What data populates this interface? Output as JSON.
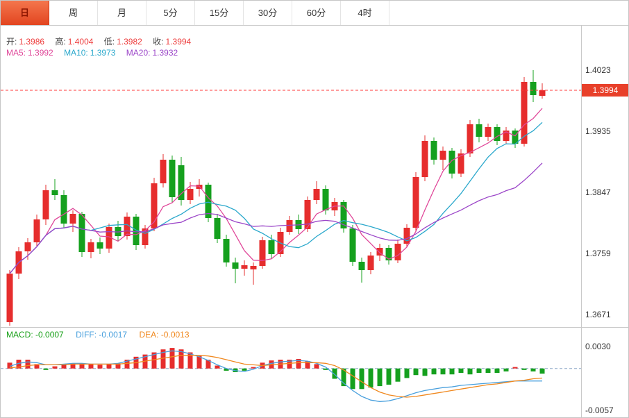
{
  "toolbar": {
    "tabs": [
      {
        "label": "日",
        "active": true
      },
      {
        "label": "周",
        "active": false
      },
      {
        "label": "月",
        "active": false
      },
      {
        "label": "5分",
        "active": false
      },
      {
        "label": "15分",
        "active": false
      },
      {
        "label": "30分",
        "active": false
      },
      {
        "label": "60分",
        "active": false
      },
      {
        "label": "4时",
        "active": false
      }
    ]
  },
  "legend": {
    "open_label": "开:",
    "open_value": "1.3986",
    "high_label": "高:",
    "high_value": "1.4004",
    "low_label": "低:",
    "low_value": "1.3982",
    "close_label": "收:",
    "close_value": "1.3994",
    "ma5_label": "MA5:",
    "ma5_value": "1.3992",
    "ma10_label": "MA10:",
    "ma10_value": "1.3973",
    "ma20_label": "MA20:",
    "ma20_value": "1.3932"
  },
  "price_axis": {
    "tick_labels": [
      "1.4023",
      "1.3935",
      "1.3847",
      "1.3759",
      "1.3671"
    ],
    "current_label": "1.3994"
  },
  "macd_legend": {
    "macd_label": "MACD:",
    "macd_value": "-0.0007",
    "diff_label": "DIFF:",
    "diff_value": "-0.0017",
    "dea_label": "DEA:",
    "dea_value": "-0.0013"
  },
  "macd_axis": {
    "top_label": "0.0030",
    "bottom_label": "-0.0057"
  },
  "colors": {
    "up": "#e62d2d",
    "down": "#15a01e",
    "ma5": "#e0489a",
    "ma10": "#2aa8cc",
    "ma20": "#9b45c8",
    "diff": "#49a0dd",
    "dea": "#f0881e",
    "current_line": "#ff3b3b",
    "zero_line": "#8ea8c8",
    "active_tab": "#e24520"
  },
  "chart_data": {
    "type": "candlestick",
    "interval": "日",
    "title": "",
    "price_axis_ticks": [
      1.4023,
      1.3935,
      1.3847,
      1.3759,
      1.3671
    ],
    "current_price": 1.3994,
    "last_bar": {
      "open": 1.3986,
      "high": 1.4004,
      "low": 1.3982,
      "close": 1.3994
    },
    "ma_overlays": [
      {
        "name": "MA5",
        "period": 5,
        "last_value": 1.3992
      },
      {
        "name": "MA10",
        "period": 10,
        "last_value": 1.3973
      },
      {
        "name": "MA20",
        "period": 20,
        "last_value": 1.3932
      }
    ],
    "candles": [
      [
        1.366,
        1.3735,
        1.3655,
        1.373
      ],
      [
        1.373,
        1.3768,
        1.3722,
        1.3762
      ],
      [
        1.3762,
        1.3781,
        1.375,
        1.3775
      ],
      [
        1.3775,
        1.3815,
        1.377,
        1.3808
      ],
      [
        1.3808,
        1.3858,
        1.38,
        1.385
      ],
      [
        1.385,
        1.3866,
        1.3836,
        1.3843
      ],
      [
        1.3843,
        1.385,
        1.3795,
        1.3802
      ],
      [
        1.3802,
        1.3821,
        1.379,
        1.3816
      ],
      [
        1.3816,
        1.3819,
        1.3754,
        1.3761
      ],
      [
        1.3761,
        1.378,
        1.3752,
        1.3775
      ],
      [
        1.3775,
        1.3782,
        1.3758,
        1.3766
      ],
      [
        1.3766,
        1.3802,
        1.376,
        1.3797
      ],
      [
        1.3797,
        1.3806,
        1.3777,
        1.3784
      ],
      [
        1.3784,
        1.3818,
        1.3779,
        1.3812
      ],
      [
        1.3812,
        1.3816,
        1.3764,
        1.3771
      ],
      [
        1.3771,
        1.38,
        1.3766,
        1.3795
      ],
      [
        1.3795,
        1.3868,
        1.3791,
        1.386
      ],
      [
        1.386,
        1.3902,
        1.3854,
        1.3894
      ],
      [
        1.3894,
        1.39,
        1.3832,
        1.384
      ],
      [
        1.3886,
        1.3898,
        1.3828,
        1.3836
      ],
      [
        1.3836,
        1.3862,
        1.383,
        1.3852
      ],
      [
        1.3852,
        1.3866,
        1.3841,
        1.3858
      ],
      [
        1.3858,
        1.3861,
        1.3804,
        1.381
      ],
      [
        1.381,
        1.3816,
        1.3774,
        1.378
      ],
      [
        1.378,
        1.3786,
        1.374,
        1.3746
      ],
      [
        1.3746,
        1.3753,
        1.3716,
        1.3737
      ],
      [
        1.3737,
        1.3749,
        1.3727,
        1.3742
      ],
      [
        1.3736,
        1.3746,
        1.3714,
        1.3741
      ],
      [
        1.3741,
        1.3783,
        1.3737,
        1.3778
      ],
      [
        1.3778,
        1.3786,
        1.3752,
        1.3758
      ],
      [
        1.3758,
        1.3796,
        1.3754,
        1.379
      ],
      [
        1.379,
        1.3813,
        1.3786,
        1.3807
      ],
      [
        1.3807,
        1.3815,
        1.3787,
        1.3794
      ],
      [
        1.3794,
        1.3841,
        1.379,
        1.3836
      ],
      [
        1.3836,
        1.3863,
        1.383,
        1.3852
      ],
      [
        1.3852,
        1.3857,
        1.3815,
        1.3821
      ],
      [
        1.3821,
        1.3839,
        1.3813,
        1.3833
      ],
      [
        1.3833,
        1.3836,
        1.3789,
        1.3795
      ],
      [
        1.3795,
        1.38,
        1.3741,
        1.3747
      ],
      [
        1.3747,
        1.3753,
        1.3717,
        1.3735
      ],
      [
        1.3735,
        1.3761,
        1.3729,
        1.3756
      ],
      [
        1.3756,
        1.3773,
        1.3748,
        1.3767
      ],
      [
        1.3767,
        1.3771,
        1.3743,
        1.3749
      ],
      [
        1.3749,
        1.3779,
        1.3745,
        1.3773
      ],
      [
        1.3773,
        1.3801,
        1.3768,
        1.3796
      ],
      [
        1.3796,
        1.3876,
        1.3791,
        1.3869
      ],
      [
        1.3869,
        1.3929,
        1.3863,
        1.3921
      ],
      [
        1.3921,
        1.3926,
        1.3887,
        1.3894
      ],
      [
        1.3894,
        1.3913,
        1.3879,
        1.3907
      ],
      [
        1.3907,
        1.3911,
        1.3867,
        1.3874
      ],
      [
        1.3874,
        1.3909,
        1.3869,
        1.3903
      ],
      [
        1.3903,
        1.3951,
        1.3898,
        1.3945
      ],
      [
        1.3945,
        1.3953,
        1.3919,
        1.3927
      ],
      [
        1.3927,
        1.3946,
        1.3921,
        1.3941
      ],
      [
        1.3941,
        1.3945,
        1.3915,
        1.3921
      ],
      [
        1.3921,
        1.3941,
        1.3917,
        1.3936
      ],
      [
        1.3936,
        1.3939,
        1.3911,
        1.3917
      ],
      [
        1.3917,
        1.4013,
        1.3913,
        1.4006
      ],
      [
        1.4006,
        1.4023,
        1.3977,
        1.3987
      ],
      [
        1.3986,
        1.4004,
        1.3982,
        1.3994
      ]
    ],
    "macd": {
      "ylim": [
        -0.0057,
        0.003
      ],
      "last": {
        "macd": -0.0007,
        "diff": -0.0017,
        "dea": -0.0013
      },
      "hist": [
        0.0008,
        0.0012,
        0.0012,
        0.0006,
        -0.0002,
        0.0003,
        0.0006,
        0.0007,
        0.0006,
        0.0006,
        0.0005,
        0.0006,
        0.0007,
        0.0012,
        0.0016,
        0.0019,
        0.0022,
        0.0026,
        0.0028,
        0.0026,
        0.0022,
        0.0017,
        0.0012,
        0.0004,
        -0.0003,
        -0.0005,
        -0.0003,
        0.0002,
        0.0008,
        0.0011,
        0.0012,
        0.0012,
        0.0013,
        0.001,
        0.0006,
        -0.0002,
        -0.0014,
        -0.0024,
        -0.0028,
        -0.0028,
        -0.0026,
        -0.0024,
        -0.0022,
        -0.0018,
        -0.0013,
        -0.0009,
        -0.001,
        -0.0008,
        -0.0008,
        -0.0008,
        -0.0006,
        -0.0008,
        -0.0006,
        -0.0006,
        -0.0006,
        -0.0004,
        0.0002,
        -0.0002,
        -0.0004,
        -0.0007
      ],
      "diff": [
        0.0003,
        0.0007,
        0.0009,
        0.0008,
        0.0005,
        0.0005,
        0.0006,
        0.0007,
        0.0007,
        0.0006,
        0.0006,
        0.0006,
        0.0007,
        0.001,
        0.0013,
        0.0016,
        0.0019,
        0.0022,
        0.0024,
        0.0023,
        0.002,
        0.0016,
        0.0011,
        0.0005,
        0.0,
        -0.0003,
        -0.0004,
        -0.0001,
        0.0004,
        0.0007,
        0.0009,
        0.001,
        0.0011,
        0.001,
        0.0007,
        0.0002,
        -0.0008,
        -0.002,
        -0.003,
        -0.0038,
        -0.0043,
        -0.0045,
        -0.0044,
        -0.0041,
        -0.0037,
        -0.0033,
        -0.003,
        -0.0028,
        -0.0026,
        -0.0025,
        -0.0023,
        -0.0022,
        -0.0021,
        -0.002,
        -0.0019,
        -0.0018,
        -0.0017,
        -0.0017,
        -0.0017,
        -0.0017
      ],
      "dea": [
        0.0001,
        0.0002,
        0.0004,
        0.0005,
        0.0005,
        0.0005,
        0.0005,
        0.0006,
        0.0006,
        0.0006,
        0.0006,
        0.0006,
        0.0006,
        0.0007,
        0.0008,
        0.001,
        0.0012,
        0.0014,
        0.0016,
        0.0018,
        0.0018,
        0.0018,
        0.0017,
        0.0015,
        0.0012,
        0.0009,
        0.0006,
        0.0005,
        0.0004,
        0.0005,
        0.0006,
        0.0007,
        0.0008,
        0.0008,
        0.0008,
        0.0007,
        0.0004,
        -0.0002,
        -0.001,
        -0.0018,
        -0.0026,
        -0.0032,
        -0.0036,
        -0.0038,
        -0.0039,
        -0.0038,
        -0.0036,
        -0.0034,
        -0.0032,
        -0.003,
        -0.0028,
        -0.0026,
        -0.0024,
        -0.0022,
        -0.0021,
        -0.0019,
        -0.0017,
        -0.0016,
        -0.0014,
        -0.0013
      ]
    }
  }
}
